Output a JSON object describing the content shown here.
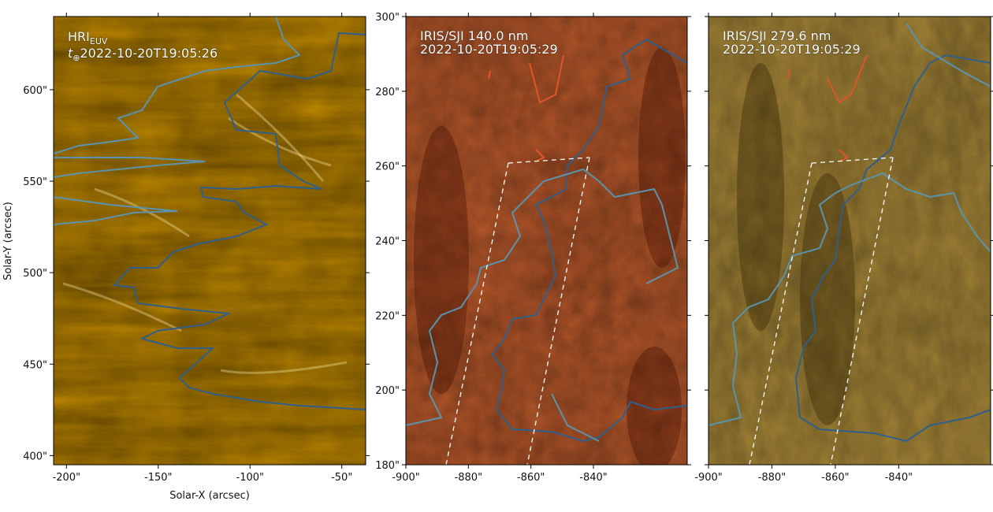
{
  "chart_data": [
    {
      "type": "image",
      "instrument": "HRI",
      "instrument_sub": "EUV",
      "time_symbol": "t",
      "time_sub": "⊕",
      "timestamp": "2022-10-20T19:05:26",
      "xlabel": "Solar-X (arcsec)",
      "ylabel": "Solar-Y (arcsec)",
      "xlim": [
        -207,
        -37
      ],
      "ylim": [
        395,
        640
      ],
      "x_ticks": [
        -200,
        -150,
        -100,
        -50
      ],
      "x_tick_labels": [
        "-200\"",
        "-150\"",
        "-100\"",
        "-50\""
      ],
      "y_ticks": [
        400,
        450,
        500,
        550,
        600
      ],
      "y_tick_labels": [
        "400\"",
        "450\"",
        "500\"",
        "550\"",
        "600\""
      ],
      "colormap": [
        "#2a1800",
        "#8a5400",
        "#e0a000",
        "#ffd23c",
        "#fff3c0"
      ],
      "contour_colors": [
        "#2f5f8a",
        "#5b93ad"
      ]
    },
    {
      "type": "image",
      "title": "IRIS/SJI 140.0 nm",
      "timestamp": "2022-10-20T19:05:29",
      "xlim": [
        -900,
        -810
      ],
      "ylim": [
        180,
        300
      ],
      "x_ticks": [
        -900,
        -880,
        -860,
        -840
      ],
      "x_tick_labels": [
        "-900\"",
        "-880\"",
        "-860\"",
        "-840\""
      ],
      "y_ticks": [
        180,
        200,
        220,
        240,
        260,
        280,
        300
      ],
      "y_tick_labels": [
        "180\"",
        "200\"",
        "220\"",
        "240\"",
        "260\"",
        "280\"",
        "300\""
      ],
      "colormap": [
        "#3d0c00",
        "#8e2a10",
        "#c8602e",
        "#f0b08a",
        "#ffffff"
      ],
      "contour_colors": [
        "#2f5f8a",
        "#5b93ad",
        "#e0552b"
      ]
    },
    {
      "type": "image",
      "title": "IRIS/SJI 279.6 nm",
      "timestamp": "2022-10-20T19:05:29",
      "xlim": [
        -900,
        -811
      ],
      "ylim": [
        180,
        300
      ],
      "x_ticks": [
        -900,
        -880,
        -860,
        -840
      ],
      "x_tick_labels": [
        "-900\"",
        "-880\"",
        "-860\"",
        "-840\""
      ],
      "colormap": [
        "#2a1c00",
        "#6e5210",
        "#b8953e",
        "#e7d09a",
        "#ffffff"
      ],
      "contour_colors": [
        "#2f5f8a",
        "#5b93ad",
        "#e0552b"
      ]
    }
  ]
}
